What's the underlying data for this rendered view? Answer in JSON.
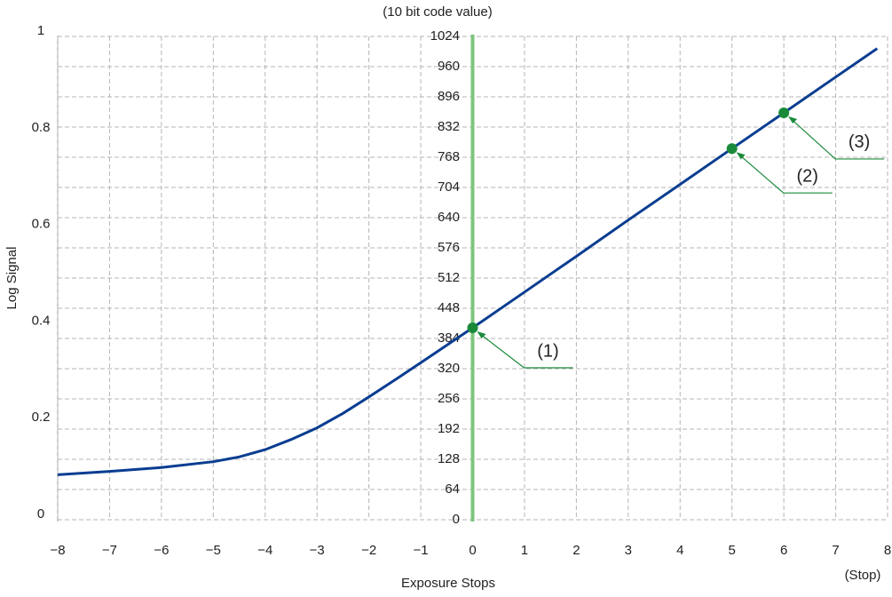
{
  "chart_data": {
    "type": "line",
    "x_label": "Exposure Stops",
    "x_unit_label": "(Stop)",
    "y_label": "Log Signal",
    "y2_label": "(10 bit code value)",
    "x": [
      -8,
      -7,
      -6,
      -5,
      -4.5,
      -4,
      -3.5,
      -3,
      -2.5,
      -2,
      -1.5,
      -1,
      -0.5,
      0,
      1,
      2,
      3,
      4,
      5,
      6,
      7,
      7.8
    ],
    "series": [
      {
        "color": "#0a3d91",
        "values": [
          0.093,
          0.1,
          0.108,
          0.12,
          0.13,
          0.145,
          0.166,
          0.19,
          0.22,
          0.254,
          0.289,
          0.325,
          0.361,
          0.397,
          0.471,
          0.545,
          0.62,
          0.694,
          0.768,
          0.842,
          0.916,
          0.975
        ]
      }
    ],
    "points": {
      "color": "#1a8a3a",
      "x": [
        0,
        5,
        6
      ],
      "values": [
        0.397,
        0.768,
        0.842
      ],
      "labels": [
        "(1)",
        "(2)",
        "(3)"
      ]
    },
    "reference_line": {
      "x": 0,
      "color": "#7cc47c"
    },
    "xlim": [
      -8,
      8
    ],
    "xticks": [
      {
        "value": -8,
        "label": "−8"
      },
      {
        "value": -7,
        "label": "−7"
      },
      {
        "value": -6,
        "label": "−6"
      },
      {
        "value": -5,
        "label": "−5"
      },
      {
        "value": -4,
        "label": "−4"
      },
      {
        "value": -3,
        "label": "−3"
      },
      {
        "value": -2,
        "label": "−2"
      },
      {
        "value": -1,
        "label": "−1"
      },
      0,
      1,
      2,
      3,
      4,
      5,
      6,
      7,
      8
    ],
    "ylim": [
      0,
      1
    ],
    "yticks": [
      0,
      0.2,
      0.4,
      0.6,
      0.8,
      1
    ],
    "y2lim": [
      0,
      1024
    ],
    "y2ticks": [
      0,
      64,
      128,
      192,
      256,
      320,
      384,
      448,
      512,
      576,
      640,
      704,
      768,
      832,
      896,
      960,
      1024
    ],
    "grid": true
  }
}
